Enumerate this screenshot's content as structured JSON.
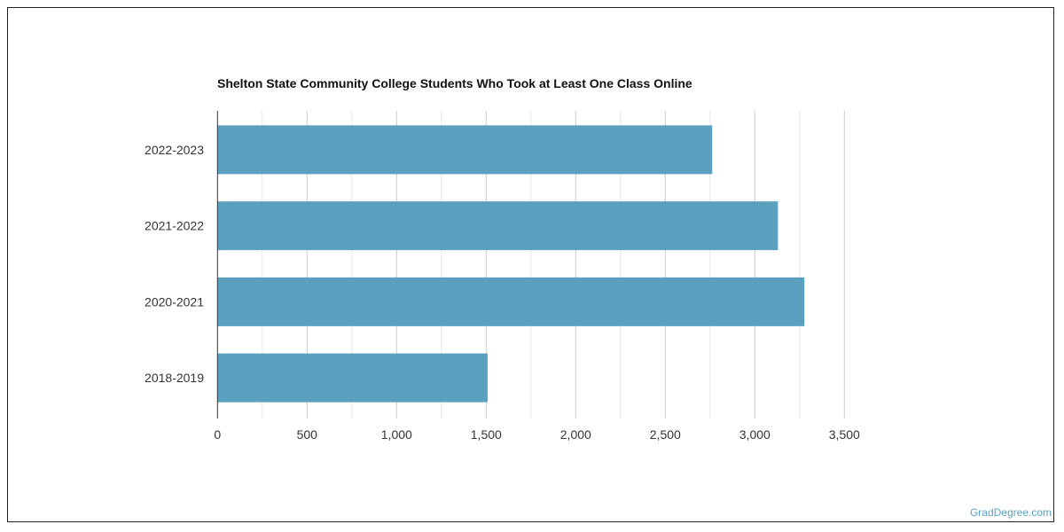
{
  "chart_data": {
    "type": "bar",
    "orientation": "horizontal",
    "title": "Shelton State Community College Students Who Took at Least One Class Online",
    "categories": [
      "2022-2023",
      "2021-2022",
      "2020-2021",
      "2018-2019"
    ],
    "values": [
      2762,
      3129,
      3277,
      1508
    ],
    "xlim": [
      0,
      3500
    ],
    "xticks": [
      0,
      500,
      1000,
      1500,
      2000,
      2500,
      3000,
      3500
    ],
    "xtick_labels": [
      "0",
      "500",
      "1,000",
      "1,500",
      "2,000",
      "2,500",
      "3,000",
      "3,500"
    ],
    "xlabel": "",
    "ylabel": "",
    "grid": true,
    "bar_color": "#5ba1bf"
  },
  "brand": "GradDegree.com"
}
